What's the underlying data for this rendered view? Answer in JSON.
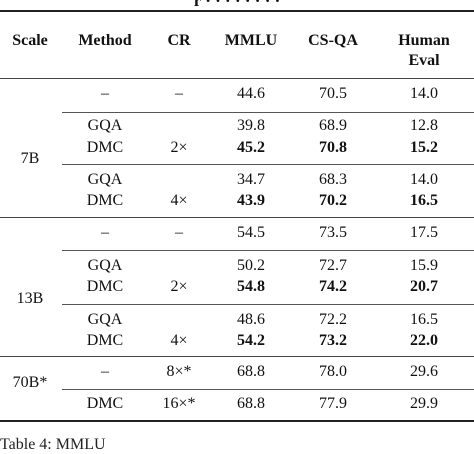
{
  "table": {
    "headers": [
      "Scale",
      "Method",
      "CR",
      "MMLU",
      "CS-QA",
      "Human",
      "Eval"
    ],
    "groups": [
      {
        "scale": "7B",
        "rows": [
          [
            "–",
            "–",
            "44.6",
            "70.5",
            "14.0"
          ],
          [
            "GQA",
            "",
            "39.8",
            "68.9",
            "12.8"
          ],
          [
            "DMC",
            "2×",
            "45.2",
            "70.8",
            "15.2"
          ],
          [
            "GQA",
            "",
            "34.7",
            "68.3",
            "14.0"
          ],
          [
            "DMC",
            "4×",
            "43.9",
            "70.2",
            "16.5"
          ]
        ]
      },
      {
        "scale": "13B",
        "rows": [
          [
            "–",
            "–",
            "54.5",
            "73.5",
            "17.5"
          ],
          [
            "GQA",
            "",
            "50.2",
            "72.7",
            "15.9"
          ],
          [
            "DMC",
            "2×",
            "54.8",
            "74.2",
            "20.7"
          ],
          [
            "GQA",
            "",
            "48.6",
            "72.2",
            "16.5"
          ],
          [
            "DMC",
            "4×",
            "54.2",
            "73.2",
            "22.0"
          ]
        ]
      },
      {
        "scale": "70B*",
        "rows": [
          [
            "–",
            "8×*",
            "68.8",
            "78.0",
            "29.6"
          ],
          [
            "DMC",
            "16×*",
            "68.8",
            "77.9",
            "29.9"
          ]
        ]
      }
    ]
  },
  "caption": "Table 4: MMLU"
}
